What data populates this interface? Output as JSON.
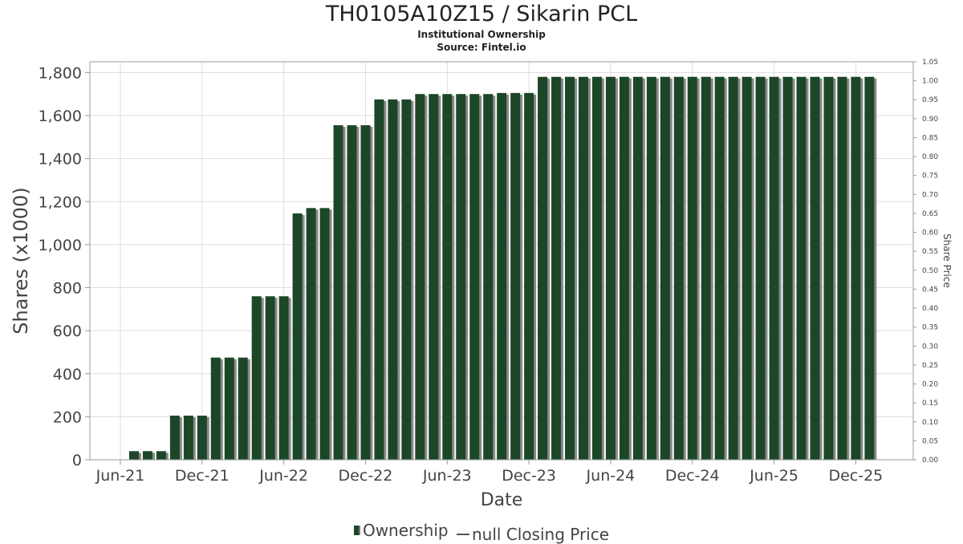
{
  "title": "TH0105A10Z15 / Sikarin PCL",
  "subtitle": "Institutional Ownership",
  "source": "Source: Fintel.io",
  "legend": {
    "ownership": "Ownership",
    "price": "null Closing Price"
  },
  "colors": {
    "bar": "#1c4628",
    "bar_shadow": "#8a8a8a",
    "grid": "#dddddd",
    "frame": "#999999"
  },
  "chart_data": {
    "type": "bar",
    "title": "TH0105A10Z15 / Sikarin PCL",
    "xlabel": "Date",
    "ylabel": "Shares (x1000)",
    "y2label": "Share Price",
    "ylim": [
      0,
      1850
    ],
    "y2lim": [
      0,
      1.05
    ],
    "yticks": [
      "0",
      "200",
      "400",
      "600",
      "800",
      "1,000",
      "1,200",
      "1,400",
      "1,600",
      "1,800"
    ],
    "yticks_values": [
      0,
      200,
      400,
      600,
      800,
      1000,
      1200,
      1400,
      1600,
      1800
    ],
    "y2ticks": [
      "0.00",
      "0.05",
      "0.10",
      "0.15",
      "0.20",
      "0.25",
      "0.30",
      "0.35",
      "0.40",
      "0.45",
      "0.50",
      "0.55",
      "0.60",
      "0.65",
      "0.70",
      "0.75",
      "0.80",
      "0.85",
      "0.90",
      "0.95",
      "1.00",
      "1.05"
    ],
    "xticks": [
      "Jun-21",
      "Dec-21",
      "Jun-22",
      "Dec-22",
      "Jun-23",
      "Dec-23",
      "Jun-24",
      "Dec-24",
      "Jun-25",
      "Dec-25"
    ],
    "x_start": "2021-05",
    "grid": true,
    "legend_position": "bottom",
    "series": [
      {
        "name": "Ownership",
        "values": [
          0,
          0,
          40,
          40,
          40,
          205,
          205,
          205,
          475,
          475,
          475,
          760,
          760,
          760,
          1145,
          1170,
          1170,
          1555,
          1555,
          1555,
          1675,
          1675,
          1675,
          1700,
          1700,
          1700,
          1700,
          1700,
          1700,
          1705,
          1705,
          1705,
          1780,
          1780,
          1780,
          1780,
          1780,
          1780,
          1780,
          1780,
          1780,
          1780,
          1780,
          1780,
          1780,
          1780,
          1780,
          1780,
          1780,
          1780,
          1780,
          1780,
          1780,
          1780,
          1780,
          1780,
          1780
        ]
      }
    ]
  }
}
